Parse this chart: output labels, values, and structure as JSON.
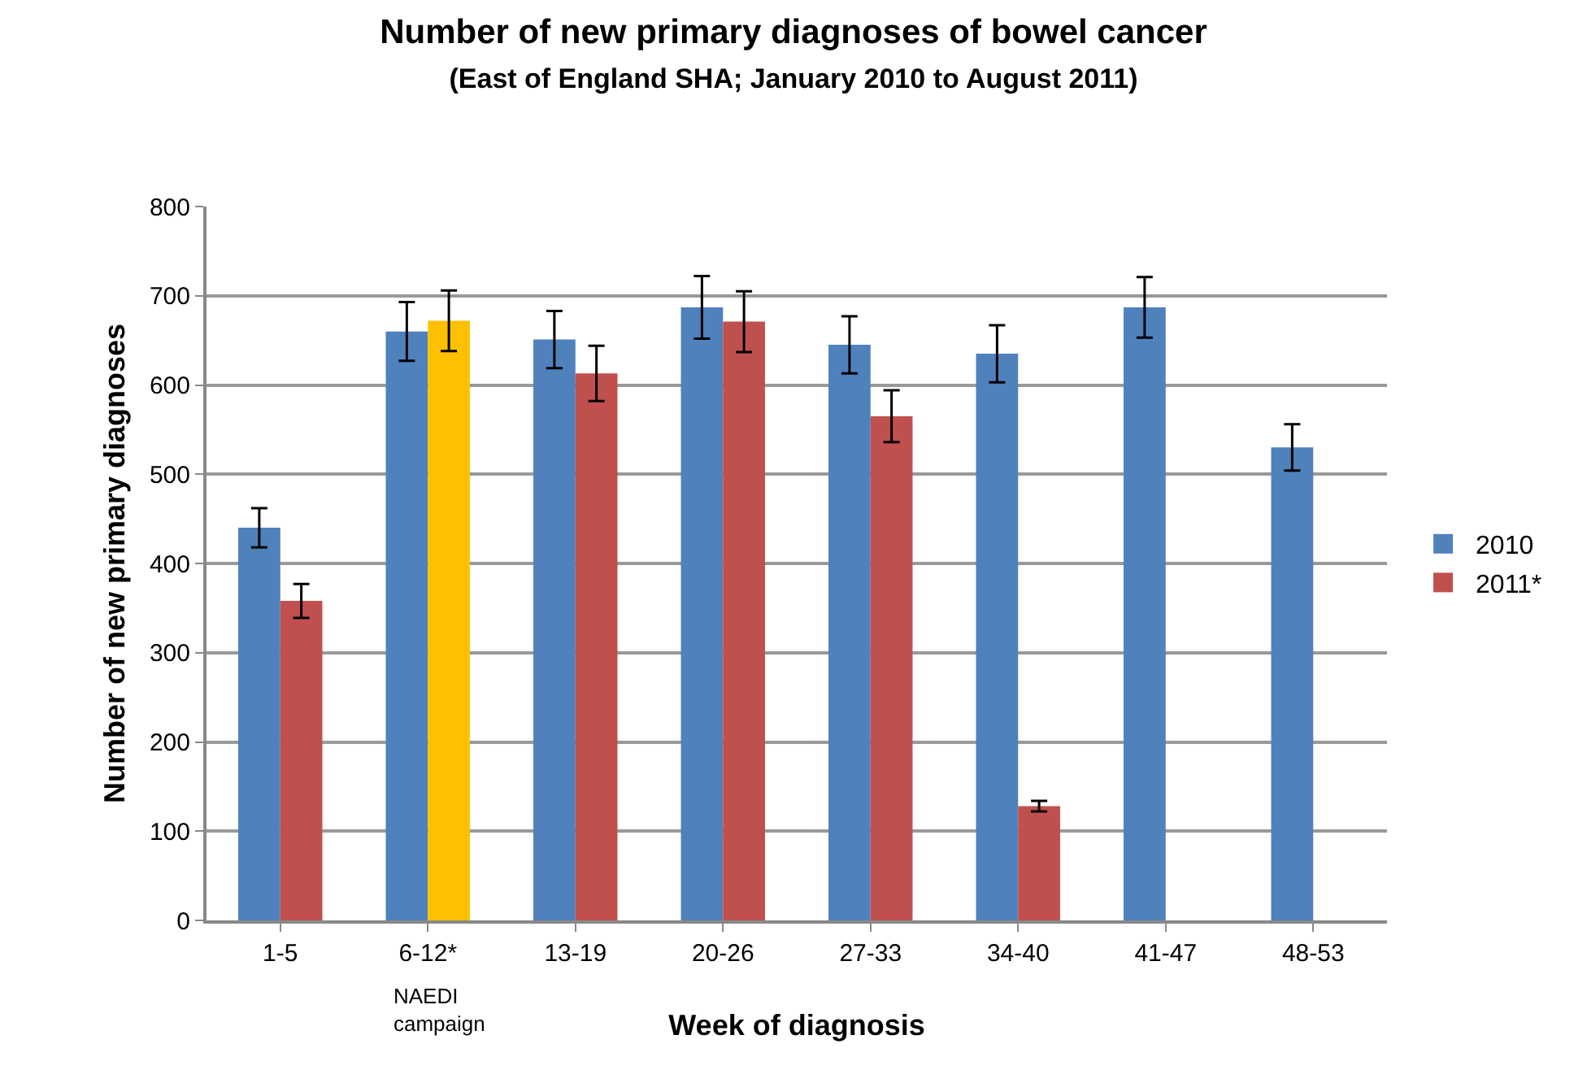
{
  "chart_data": {
    "type": "bar",
    "title": "Number of new primary diagnoses of bowel cancer",
    "subtitle": "(East of England SHA; January 2010 to August 2011)",
    "xlabel": "Week of diagnosis",
    "ylabel": "Number of new primary diagnoses",
    "categories": [
      "1-5",
      "6-12*",
      "13-19",
      "20-26",
      "27-33",
      "34-40",
      "41-47",
      "48-53"
    ],
    "series": [
      {
        "name": "2010",
        "color": "#4f81bd",
        "values": [
          440,
          660,
          651,
          687,
          645,
          635,
          687,
          530
        ],
        "errors": [
          22,
          33,
          32,
          35,
          32,
          32,
          34,
          26
        ]
      },
      {
        "name": "2011*",
        "color": "#c0504d",
        "colors": [
          "#c0504d",
          "#ffc000",
          "#c0504d",
          "#c0504d",
          "#c0504d",
          "#c0504d",
          "#c0504d",
          "#c0504d"
        ],
        "values": [
          358,
          672,
          613,
          671,
          565,
          128,
          null,
          null
        ],
        "errors": [
          19,
          34,
          31,
          34,
          29,
          6,
          null,
          null
        ]
      }
    ],
    "annotations": [
      "NAEDI\ncampaign"
    ],
    "ylim": [
      0,
      800
    ],
    "yticks": [
      0,
      100,
      200,
      300,
      400,
      500,
      600,
      700,
      800
    ],
    "grid": "y",
    "legend": "right"
  }
}
